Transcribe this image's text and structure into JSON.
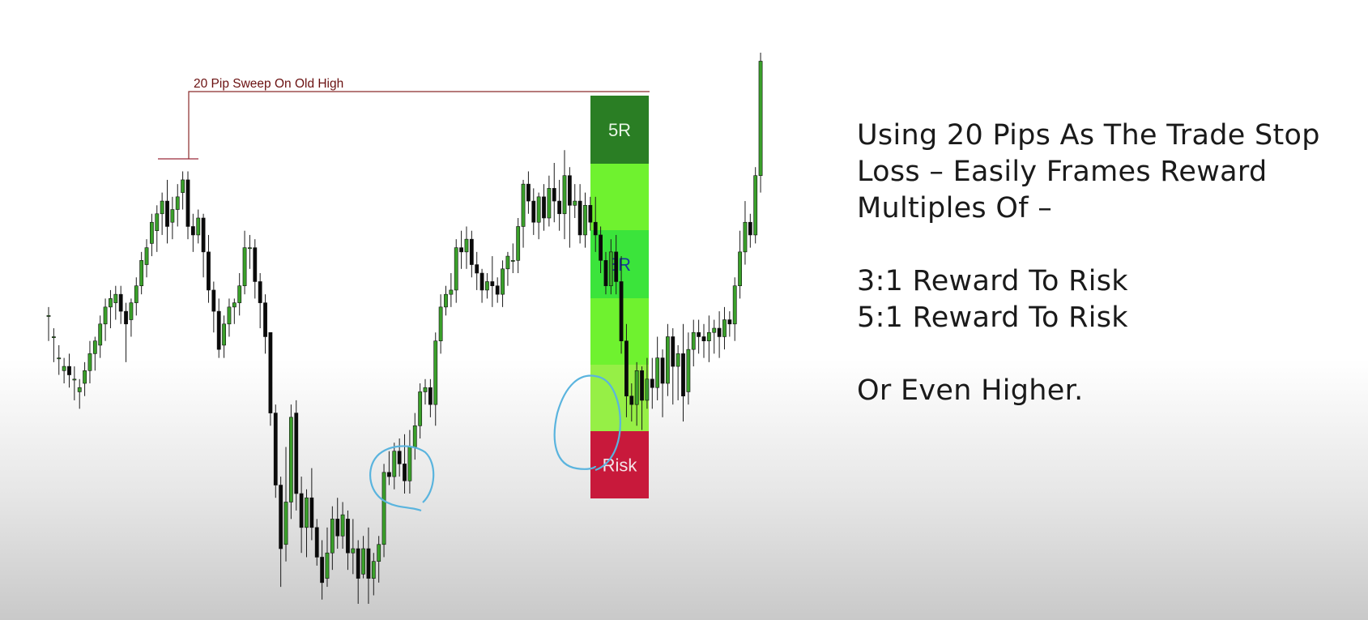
{
  "annotation": {
    "sweep_label": "20 Pip Sweep On Old High"
  },
  "risk_box": {
    "zones": [
      {
        "name": "5R-zone",
        "label": "5R",
        "color": "#2a7e24",
        "label_color": "#e8f5e6"
      },
      {
        "name": "4R-zone",
        "label": "",
        "color": "#6ff22f",
        "label_color": "#000000"
      },
      {
        "name": "3R-zone",
        "label": "3R",
        "color": "#3be43b",
        "label_color": "#183a9a"
      },
      {
        "name": "2R-zone",
        "label": "",
        "color": "#6ff22f",
        "label_color": "#000000"
      },
      {
        "name": "1R-zone",
        "label": "",
        "color": "#96ef46",
        "label_color": "#000000"
      },
      {
        "name": "risk-zone",
        "label": "Risk",
        "color": "#c8193b",
        "label_color": "#f4e4e8"
      }
    ]
  },
  "notes": {
    "line1": "Using 20 Pips As The Trade Stop",
    "line2": "Loss – Easily Frames Reward",
    "line3": "Multiples Of –",
    "line4": "3:1 Reward To Risk",
    "line5": "5:1 Reward To Risk",
    "line6": "Or Even Higher."
  },
  "colors": {
    "bull": "#3aa02a",
    "bear": "#0a0a0a",
    "wick": "#1a1a1a",
    "sweep_line": "#8a2a2a",
    "highlight_circle": "#5ab4de"
  },
  "chart_data": {
    "type": "candlestick",
    "title": "",
    "xlabel": "",
    "ylabel": "",
    "ylim": [
      0,
      100
    ],
    "grid": false,
    "candles": [
      [
        68,
        68,
        62,
        70
      ],
      [
        63,
        63,
        57,
        65
      ],
      [
        58,
        58,
        54,
        61
      ],
      [
        55,
        56,
        52,
        58
      ],
      [
        56,
        54,
        51,
        59
      ],
      [
        53,
        53,
        48,
        56
      ],
      [
        50,
        51,
        46,
        53
      ],
      [
        52,
        55,
        49,
        57
      ],
      [
        55,
        59,
        52,
        62
      ],
      [
        59,
        62,
        55,
        63
      ],
      [
        61,
        66,
        58,
        68
      ],
      [
        66,
        70,
        62,
        72
      ],
      [
        70,
        72,
        65,
        74
      ],
      [
        71,
        73,
        67,
        75
      ],
      [
        73,
        69,
        66,
        75
      ],
      [
        69,
        66,
        57,
        71
      ],
      [
        67,
        71,
        63,
        72
      ],
      [
        71,
        75,
        68,
        77
      ],
      [
        75,
        81,
        73,
        83
      ],
      [
        80,
        84,
        77,
        86
      ],
      [
        85,
        90,
        82,
        92
      ],
      [
        88,
        92,
        83,
        94
      ],
      [
        92,
        95,
        87,
        97
      ],
      [
        95,
        89,
        85,
        100
      ],
      [
        90,
        93,
        86,
        96
      ],
      [
        93,
        96,
        89,
        99
      ],
      [
        97,
        100,
        93,
        102
      ],
      [
        100,
        89,
        86,
        102
      ],
      [
        89,
        87,
        83,
        92
      ],
      [
        87,
        91,
        85,
        93
      ],
      [
        91,
        83,
        77,
        92
      ],
      [
        83,
        74,
        71,
        87
      ],
      [
        74,
        69,
        64,
        76
      ],
      [
        69,
        60,
        58,
        72
      ],
      [
        61,
        66,
        58,
        68
      ],
      [
        66,
        70,
        63,
        72
      ],
      [
        70,
        71,
        66,
        72
      ],
      [
        71,
        75,
        68,
        78
      ],
      [
        75,
        84,
        73,
        88
      ],
      [
        84,
        84,
        79,
        87
      ],
      [
        84,
        76,
        72,
        86
      ],
      [
        76,
        71,
        65,
        78
      ],
      [
        71,
        63,
        59,
        73
      ],
      [
        64,
        45,
        42,
        64
      ],
      [
        45,
        28,
        25,
        47
      ],
      [
        28,
        13,
        4,
        30
      ],
      [
        14,
        24,
        10,
        37
      ],
      [
        24,
        44,
        20,
        47
      ],
      [
        45,
        26,
        22,
        48
      ],
      [
        26,
        18,
        12,
        30
      ],
      [
        18,
        25,
        11,
        27
      ],
      [
        25,
        18,
        15,
        32
      ],
      [
        18,
        11,
        9,
        20
      ],
      [
        11,
        5,
        1,
        15
      ],
      [
        6,
        12,
        4,
        18
      ],
      [
        12,
        20,
        8,
        23
      ],
      [
        20,
        16,
        13,
        25
      ],
      [
        16,
        21,
        13,
        24
      ],
      [
        20,
        12,
        8,
        22
      ],
      [
        12,
        13,
        7,
        20
      ],
      [
        13,
        6,
        0,
        15
      ],
      [
        7,
        13,
        6,
        16
      ],
      [
        13,
        6,
        0,
        18
      ],
      [
        6,
        10,
        2,
        12
      ],
      [
        10,
        14,
        5,
        16
      ],
      [
        14,
        31,
        11,
        33
      ],
      [
        31,
        30,
        28,
        36
      ],
      [
        30,
        36,
        27,
        38
      ],
      [
        36,
        33,
        30,
        39
      ],
      [
        33,
        29,
        26,
        40
      ],
      [
        29,
        37,
        26,
        41
      ],
      [
        37,
        42,
        34,
        45
      ],
      [
        42,
        50,
        39,
        52
      ],
      [
        50,
        51,
        47,
        53
      ],
      [
        51,
        47,
        44,
        53
      ],
      [
        47,
        62,
        42,
        64
      ],
      [
        62,
        70,
        59,
        73
      ],
      [
        70,
        73,
        68,
        75
      ],
      [
        73,
        74,
        70,
        78
      ],
      [
        74,
        84,
        71,
        86
      ],
      [
        84,
        83,
        79,
        88
      ],
      [
        83,
        86,
        79,
        89
      ],
      [
        86,
        80,
        77,
        88
      ],
      [
        80,
        78,
        74,
        83
      ],
      [
        78,
        74,
        71,
        79
      ],
      [
        74,
        76,
        72,
        78
      ],
      [
        76,
        75,
        70,
        82
      ],
      [
        75,
        73,
        71,
        77
      ],
      [
        73,
        79,
        70,
        81
      ],
      [
        79,
        82,
        75,
        83
      ],
      [
        81,
        81,
        78,
        85
      ],
      [
        81,
        89,
        78,
        91
      ],
      [
        89,
        99,
        84,
        100
      ],
      [
        99,
        95,
        92,
        102
      ],
      [
        95,
        90,
        87,
        98
      ],
      [
        90,
        96,
        86,
        97
      ],
      [
        96,
        91,
        88,
        99
      ],
      [
        91,
        98,
        89,
        101
      ],
      [
        98,
        95,
        90,
        104
      ],
      [
        95,
        92,
        88,
        100
      ],
      [
        92,
        101,
        86,
        107
      ],
      [
        101,
        94,
        84,
        103
      ],
      [
        94,
        95,
        91,
        99
      ],
      [
        95,
        87,
        85,
        99
      ],
      [
        87,
        94,
        84,
        97
      ],
      [
        94,
        90,
        88,
        96
      ],
      [
        90,
        87,
        83,
        96
      ],
      [
        87,
        81,
        78,
        89
      ],
      [
        81,
        75,
        73,
        83
      ],
      [
        75,
        83,
        73,
        86
      ],
      [
        83,
        76,
        73,
        87
      ],
      [
        76,
        62,
        59,
        82
      ],
      [
        62,
        49,
        44,
        66
      ],
      [
        49,
        47,
        43,
        52
      ],
      [
        47,
        55,
        42,
        57
      ],
      [
        55,
        48,
        41,
        56
      ],
      [
        48,
        53,
        46,
        58
      ],
      [
        53,
        51,
        46,
        58
      ],
      [
        51,
        58,
        48,
        63
      ],
      [
        58,
        52,
        44,
        60
      ],
      [
        52,
        63,
        49,
        66
      ],
      [
        63,
        56,
        47,
        65
      ],
      [
        56,
        59,
        48,
        61
      ],
      [
        59,
        49,
        43,
        66
      ],
      [
        50,
        60,
        47,
        64
      ],
      [
        60,
        64,
        56,
        67
      ],
      [
        64,
        63,
        59,
        67
      ],
      [
        63,
        62,
        58,
        66
      ],
      [
        62,
        64,
        57,
        68
      ],
      [
        64,
        65,
        59,
        67
      ],
      [
        65,
        63,
        58,
        69
      ],
      [
        63,
        67,
        60,
        70
      ],
      [
        67,
        66,
        63,
        69
      ],
      [
        66,
        75,
        62,
        77
      ],
      [
        75,
        83,
        72,
        88
      ],
      [
        83,
        90,
        80,
        95
      ],
      [
        90,
        87,
        84,
        92
      ],
      [
        87,
        101,
        85,
        103
      ],
      [
        101,
        128,
        97,
        130
      ]
    ]
  }
}
